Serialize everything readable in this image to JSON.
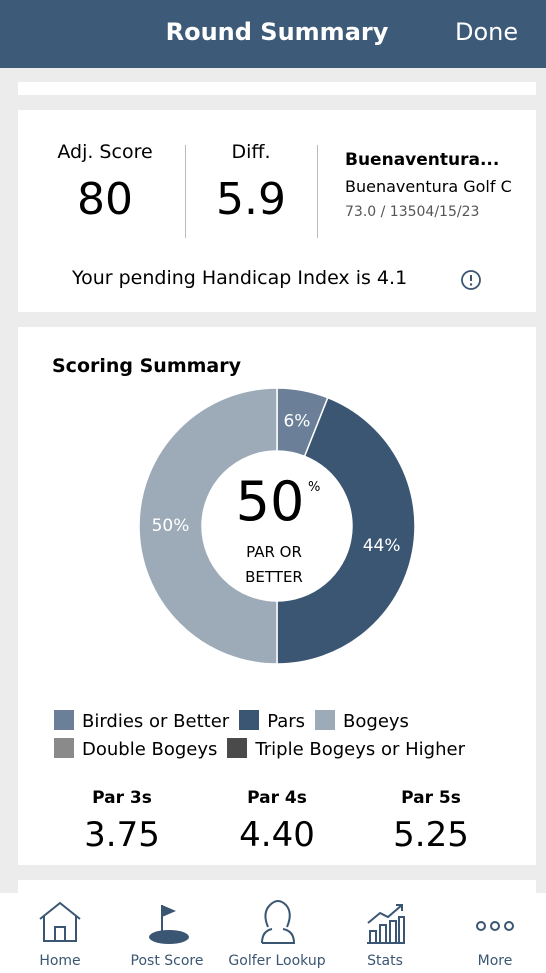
{
  "header": {
    "title": "Round Summary",
    "action": "Done"
  },
  "round": {
    "score_label": "Adj. Score",
    "score": "80",
    "diff_label": "Diff.",
    "diff": "5.9",
    "course_short": "Buenaventura...",
    "course_name": "Buenaventura Golf C",
    "course_meta": "73.0 / 13504/15/23",
    "handicap_text": "Your pending Handicap Index is 4.1"
  },
  "summary_title": "Scoring Summary",
  "chart_data": {
    "type": "pie",
    "categories": [
      "Birdies or Better",
      "Pars",
      "Bogeys",
      "Double Bogeys",
      "Triple Bogeys or Higher"
    ],
    "values": [
      6,
      44,
      50,
      0,
      0
    ],
    "value_labels": [
      "6%",
      "44%",
      "50%",
      null,
      null
    ],
    "colors": [
      "#6b8098",
      "#3a5672",
      "#9dabb9",
      "#8a8a8a",
      "#4a4a4a"
    ],
    "center_value": "50",
    "center_unit": "%",
    "center_label": "PAR OR BETTER"
  },
  "par_averages": [
    {
      "label": "Par 3s",
      "value": "3.75"
    },
    {
      "label": "Par 4s",
      "value": "4.40"
    },
    {
      "label": "Par 5s",
      "value": "5.25"
    }
  ],
  "tabs": [
    "Home",
    "Post Score",
    "Golfer Lookup",
    "Stats",
    "More"
  ]
}
